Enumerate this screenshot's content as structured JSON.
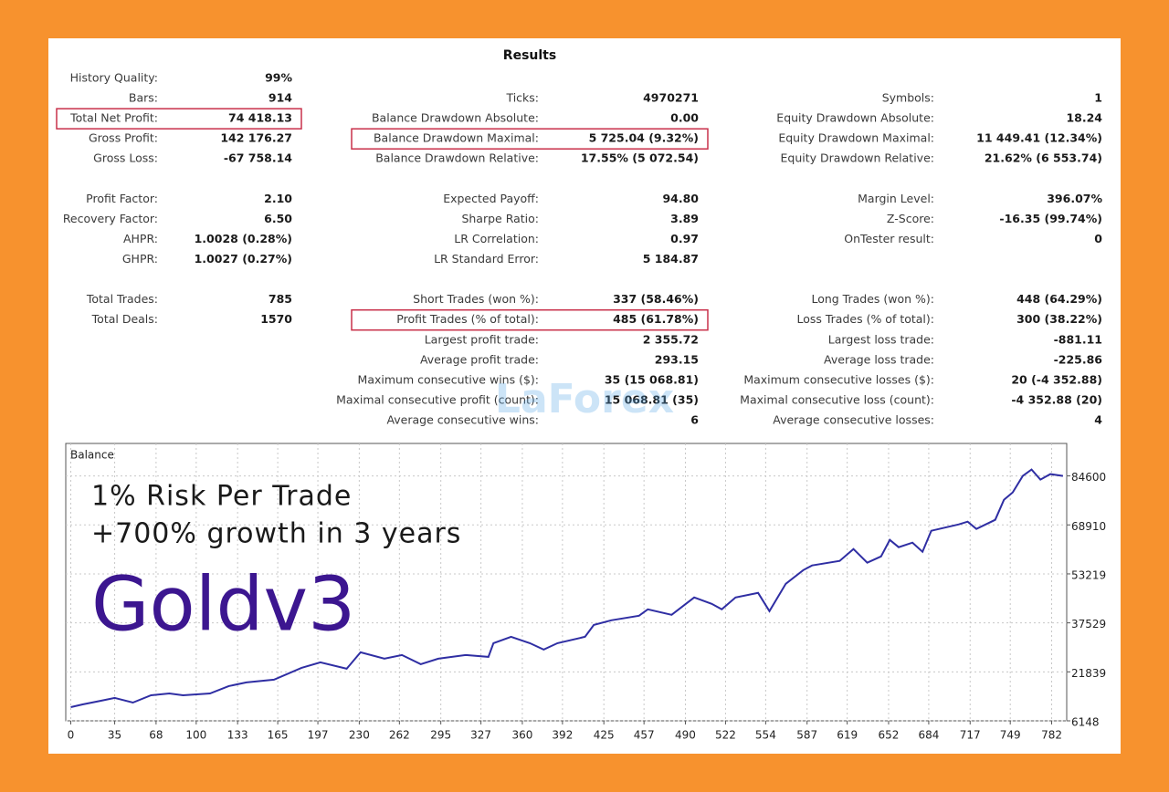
{
  "results": {
    "title": "Results",
    "rows": [
      [
        {
          "label": "History Quality:",
          "value": "99%"
        },
        null,
        null
      ],
      [
        {
          "label": "Bars:",
          "value": "914"
        },
        {
          "label": "Ticks:",
          "value": "4970271"
        },
        {
          "label": "Symbols:",
          "value": "1"
        }
      ],
      [
        {
          "label": "Total Net Profit:",
          "value": "74 418.13",
          "highlighted": true
        },
        {
          "label": "Balance Drawdown Absolute:",
          "value": "0.00"
        },
        {
          "label": "Equity Drawdown Absolute:",
          "value": "18.24"
        }
      ],
      [
        {
          "label": "Gross Profit:",
          "value": "142 176.27"
        },
        {
          "label": "Balance Drawdown Maximal:",
          "value": "5 725.04 (9.32%)",
          "highlighted": true
        },
        {
          "label": "Equity Drawdown Maximal:",
          "value": "11 449.41 (12.34%)"
        }
      ],
      [
        {
          "label": "Gross Loss:",
          "value": "-67 758.14"
        },
        {
          "label": "Balance Drawdown Relative:",
          "value": "17.55% (5 072.54)"
        },
        {
          "label": "Equity Drawdown Relative:",
          "value": "21.62% (6 553.74)"
        }
      ],
      [
        null,
        null,
        null
      ],
      [
        {
          "label": "Profit Factor:",
          "value": "2.10"
        },
        {
          "label": "Expected Payoff:",
          "value": "94.80"
        },
        {
          "label": "Margin Level:",
          "value": "396.07%"
        }
      ],
      [
        {
          "label": "Recovery Factor:",
          "value": "6.50"
        },
        {
          "label": "Sharpe Ratio:",
          "value": "3.89"
        },
        {
          "label": "Z-Score:",
          "value": "-16.35 (99.74%)"
        }
      ],
      [
        {
          "label": "AHPR:",
          "value": "1.0028 (0.28%)"
        },
        {
          "label": "LR Correlation:",
          "value": "0.97"
        },
        {
          "label": "OnTester result:",
          "value": "0"
        }
      ],
      [
        {
          "label": "GHPR:",
          "value": "1.0027 (0.27%)"
        },
        {
          "label": "LR Standard Error:",
          "value": "5 184.87"
        },
        null
      ],
      [
        null,
        null,
        null
      ],
      [
        {
          "label": "Total Trades:",
          "value": "785"
        },
        {
          "label": "Short Trades (won %):",
          "value": "337 (58.46%)"
        },
        {
          "label": "Long Trades (won %):",
          "value": "448 (64.29%)"
        }
      ],
      [
        {
          "label": "Total Deals:",
          "value": "1570"
        },
        {
          "label": "Profit Trades (% of total):",
          "value": "485 (61.78%)",
          "highlighted": true
        },
        {
          "label": "Loss Trades (% of total):",
          "value": "300 (38.22%)"
        }
      ],
      [
        null,
        {
          "label": "Largest profit trade:",
          "value": "2 355.72"
        },
        {
          "label": "Largest loss trade:",
          "value": "-881.11"
        }
      ],
      [
        null,
        {
          "label": "Average profit trade:",
          "value": "293.15"
        },
        {
          "label": "Average loss trade:",
          "value": "-225.86"
        }
      ],
      [
        null,
        {
          "label": "Maximum consecutive wins ($):",
          "value": "35 (15 068.81)"
        },
        {
          "label": "Maximum consecutive losses ($):",
          "value": "20 (-4 352.88)"
        }
      ],
      [
        null,
        {
          "label": "Maximal consecutive profit (count):",
          "value": "15 068.81 (35)"
        },
        {
          "label": "Maximal consecutive loss (count):",
          "value": "-4 352.88 (20)"
        }
      ],
      [
        null,
        {
          "label": "Average consecutive wins:",
          "value": "6"
        },
        {
          "label": "Average consecutive losses:",
          "value": "4"
        }
      ]
    ]
  },
  "watermark": "LaForex",
  "chart_data": {
    "type": "line",
    "title": "Balance",
    "annotations": [
      "1% Risk Per Trade",
      "+700% growth in 3 years",
      "Goldv3"
    ],
    "x": [
      0,
      9.5,
      24,
      35,
      49.5,
      64,
      78.6,
      89.5,
      111,
      126,
      140,
      162,
      184,
      199,
      220,
      231,
      250,
      264,
      279,
      293,
      315,
      333,
      337,
      351,
      366,
      377,
      388,
      410,
      417,
      431,
      453,
      460,
      479,
      497,
      511,
      519,
      530,
      548,
      557,
      570,
      584,
      591,
      613,
      624,
      635,
      646,
      653,
      660,
      671,
      679,
      686,
      708,
      715,
      722,
      737,
      744,
      751,
      759,
      766,
      773,
      781,
      791
    ],
    "series": [
      {
        "color": "#2f2ea3",
        "values": [
          10540,
          11420,
          12590,
          13470,
          12000,
          14340,
          14930,
          14340,
          14930,
          17270,
          18440,
          19320,
          23130,
          24880,
          22830,
          28100,
          26050,
          27220,
          24300,
          26050,
          27220,
          26640,
          31030,
          33080,
          31030,
          28980,
          31030,
          33080,
          36880,
          38350,
          39810,
          41860,
          40100,
          45660,
          43610,
          41860,
          45660,
          47130,
          41270,
          50050,
          54440,
          55910,
          57370,
          61180,
          56790,
          58830,
          64100,
          61760,
          63220,
          60300,
          67030,
          69080,
          69960,
          67610,
          70540,
          76980,
          79320,
          84590,
          86640,
          83420,
          85180,
          84590
        ]
      }
    ],
    "xlim": [
      -4,
      794
    ],
    "ylim": [
      6148,
      95000
    ],
    "xticks": [
      0,
      35,
      68,
      100,
      133,
      165,
      197,
      230,
      262,
      295,
      327,
      360,
      392,
      425,
      457,
      490,
      522,
      554,
      587,
      619,
      652,
      684,
      717,
      749,
      782
    ],
    "yticks": [
      6148,
      21839,
      37529,
      53219,
      68910,
      84600
    ],
    "grid": true
  }
}
